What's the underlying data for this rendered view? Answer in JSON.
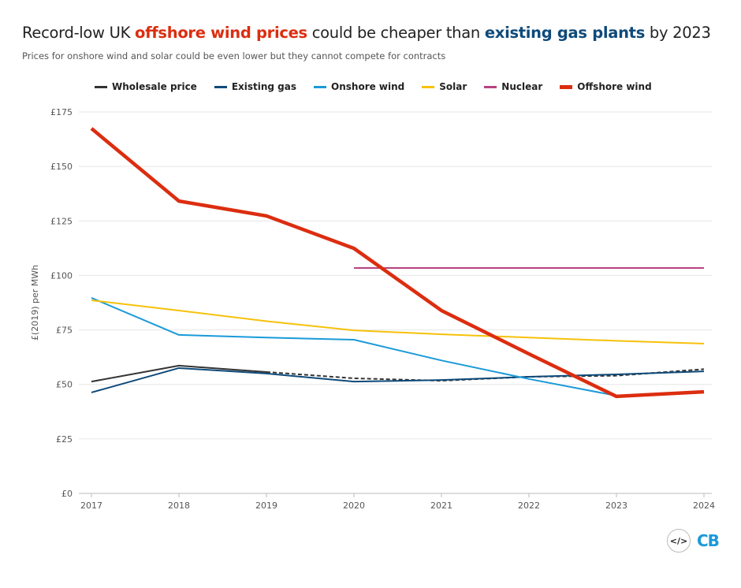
{
  "title": {
    "part1": "Record-low UK ",
    "part2": "offshore wind prices",
    "part3": " could be cheaper than ",
    "part4": "existing gas plants",
    "part5": " by 2023"
  },
  "subtitle": "Prices for onshore wind and solar could be even lower but they cannot compete for contracts",
  "logo": {
    "code": "</>",
    "brand": "CB"
  },
  "chart_data": {
    "type": "line",
    "ylabel": "£(2019) per MWh",
    "xlabel": "",
    "x": [
      2017,
      2018,
      2019,
      2020,
      2021,
      2022,
      2023,
      2024
    ],
    "ylim": [
      0,
      175
    ],
    "yticks": [
      0,
      25,
      50,
      75,
      100,
      125,
      150,
      175
    ],
    "ytick_labels": [
      "£0",
      "£25",
      "£50",
      "£75",
      "£100",
      "£125",
      "£150",
      "£175"
    ],
    "grid": true,
    "legend": "top",
    "series": [
      {
        "name": "Wholesale price",
        "color": "#333333",
        "values": [
          51.3,
          58.6,
          55.7,
          52.8,
          51.7,
          53.5,
          54,
          57
        ],
        "dashed_from": 2019
      },
      {
        "name": "Existing gas",
        "color": "#0e4a7a",
        "values": [
          46.3,
          57.5,
          55,
          51.3,
          52,
          53.5,
          54.6,
          56
        ]
      },
      {
        "name": "Onshore wind",
        "color": "#1a9ad9",
        "values": [
          89.7,
          72.7,
          71.5,
          70.5,
          61,
          52.5,
          44.8,
          null
        ]
      },
      {
        "name": "Solar",
        "color": "#f7c10a",
        "values": [
          88.6,
          83.9,
          79,
          74.8,
          73,
          71.5,
          70,
          68.7
        ]
      },
      {
        "name": "Nuclear",
        "color": "#b8427f",
        "values": [
          null,
          null,
          null,
          103.4,
          103.4,
          103.4,
          103.4,
          103.4
        ]
      },
      {
        "name": "Offshore wind",
        "color": "#dc2d10",
        "values": [
          167.4,
          134.1,
          127.3,
          112.4,
          83.9,
          64,
          44.5,
          46.6
        ]
      }
    ]
  }
}
